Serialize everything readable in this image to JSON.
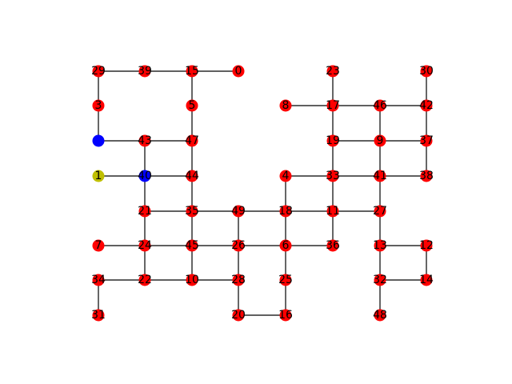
{
  "graph": {
    "colors": {
      "default": "#ff0000",
      "blue": "#0000ff",
      "yellow": "#bfbf00",
      "edge": "#000000"
    },
    "nodes": [
      {
        "id": "29",
        "color": "default"
      },
      {
        "id": "39",
        "color": "default"
      },
      {
        "id": "15",
        "color": "default"
      },
      {
        "id": "0",
        "color": "default"
      },
      {
        "id": "23",
        "color": "default"
      },
      {
        "id": "30",
        "color": "default"
      },
      {
        "id": "3",
        "color": "default"
      },
      {
        "id": "5",
        "color": "default"
      },
      {
        "id": "8",
        "color": "default"
      },
      {
        "id": "17",
        "color": "default"
      },
      {
        "id": "46",
        "color": "default"
      },
      {
        "id": "42",
        "color": "default"
      },
      {
        "id": "",
        "color": "blue"
      },
      {
        "id": "43",
        "color": "default"
      },
      {
        "id": "47",
        "color": "default"
      },
      {
        "id": "19",
        "color": "default"
      },
      {
        "id": "9",
        "color": "default"
      },
      {
        "id": "37",
        "color": "default"
      },
      {
        "id": "1",
        "color": "yellow"
      },
      {
        "id": "40",
        "color": "blue"
      },
      {
        "id": "44",
        "color": "default"
      },
      {
        "id": "4",
        "color": "default"
      },
      {
        "id": "33",
        "color": "default"
      },
      {
        "id": "41",
        "color": "default"
      },
      {
        "id": "38",
        "color": "default"
      },
      {
        "id": "21",
        "color": "default"
      },
      {
        "id": "35",
        "color": "default"
      },
      {
        "id": "49",
        "color": "default"
      },
      {
        "id": "18",
        "color": "default"
      },
      {
        "id": "11",
        "color": "default"
      },
      {
        "id": "27",
        "color": "default"
      },
      {
        "id": "7",
        "color": "default"
      },
      {
        "id": "24",
        "color": "default"
      },
      {
        "id": "45",
        "color": "default"
      },
      {
        "id": "26",
        "color": "default"
      },
      {
        "id": "6",
        "color": "default"
      },
      {
        "id": "36",
        "color": "default"
      },
      {
        "id": "13",
        "color": "default"
      },
      {
        "id": "12",
        "color": "default"
      },
      {
        "id": "34",
        "color": "default"
      },
      {
        "id": "22",
        "color": "default"
      },
      {
        "id": "10",
        "color": "default"
      },
      {
        "id": "28",
        "color": "default"
      },
      {
        "id": "25",
        "color": "default"
      },
      {
        "id": "32",
        "color": "default"
      },
      {
        "id": "14",
        "color": "default"
      },
      {
        "id": "31",
        "color": "default"
      },
      {
        "id": "20",
        "color": "default"
      },
      {
        "id": "16",
        "color": "default"
      },
      {
        "id": "48",
        "color": "default"
      }
    ]
  }
}
